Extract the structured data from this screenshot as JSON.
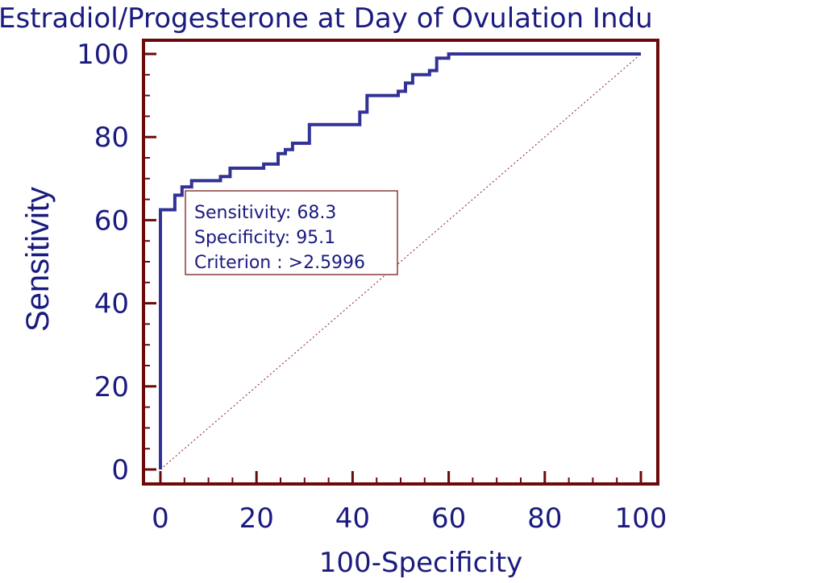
{
  "chart_data": {
    "type": "line",
    "title": "Estradiol/Progesterone at Day of Ovulation Indu",
    "xlabel": "100-Specificity",
    "ylabel": "Sensitivity",
    "xlim": [
      0,
      100
    ],
    "ylim": [
      0,
      100
    ],
    "x_ticks": [
      "0",
      "20",
      "40",
      "60",
      "80",
      "100"
    ],
    "y_ticks": [
      "0",
      "20",
      "40",
      "60",
      "80",
      "100"
    ],
    "grid": false,
    "series": [
      {
        "x": [
          0,
          0,
          3,
          3,
          4.5,
          4.5,
          6.5,
          6.5,
          12.5,
          12.5,
          14.5,
          14.5,
          21.5,
          21.5,
          24.5,
          24.5,
          26,
          26,
          27.5,
          27.5,
          31,
          31,
          41.5,
          41.5,
          43,
          43,
          49.5,
          49.5,
          51,
          51,
          52.5,
          52.5,
          56,
          56,
          57.5,
          57.5,
          60,
          60,
          100
        ],
        "y": [
          0,
          62.5,
          62.5,
          66,
          66,
          68,
          68,
          69.5,
          69.5,
          70.5,
          70.5,
          72.5,
          72.5,
          73.5,
          73.5,
          76,
          76,
          77,
          77,
          78.5,
          78.5,
          83,
          83,
          86,
          86,
          90,
          90,
          91,
          91,
          93,
          93,
          95,
          95,
          96,
          96,
          99,
          99,
          100,
          100
        ]
      }
    ],
    "reference_line": {
      "x": [
        0,
        100
      ],
      "y": [
        0,
        100
      ]
    },
    "annotation": {
      "lines": [
        "Sensitivity: 68.3",
        "Specificity: 95.1",
        "Criterion : >2.5996"
      ]
    },
    "colors": {
      "curve": "#323296",
      "axis": "#6b0a0a",
      "text": "#1a1a80",
      "reference": "#8b1a1a"
    }
  }
}
